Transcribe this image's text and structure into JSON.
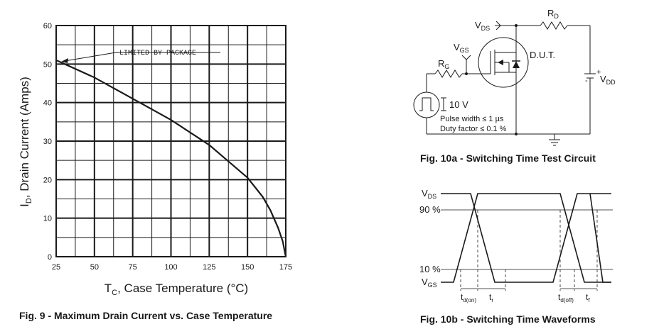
{
  "fig9": {
    "caption": "Fig. 9 - Maximum Drain Current vs. Case Temperature",
    "ylabel_main": "I",
    "ylabel_sub": "D",
    "ylabel_rest": ", Drain Current (Amps)",
    "xlabel_main": "T",
    "xlabel_sub": "C",
    "xlabel_rest": ", Case Temperature (°C)",
    "annotation": "LIMITED BY PACKAGE",
    "xticks": [
      "25",
      "50",
      "75",
      "100",
      "125",
      "150",
      "175"
    ],
    "yticks": [
      "0",
      "10",
      "20",
      "30",
      "40",
      "50",
      "60"
    ]
  },
  "chart_data": {
    "type": "line",
    "x": [
      25,
      50,
      75,
      100,
      125,
      150,
      160,
      165,
      170,
      173,
      175
    ],
    "series": [
      {
        "values": [
          51,
          46.5,
          41,
          35.5,
          29,
          20.5,
          15.5,
          12,
          7.5,
          4,
          0
        ]
      }
    ],
    "xlim": [
      25,
      175
    ],
    "ylim": [
      0,
      60
    ],
    "grid": true
  },
  "fig10a": {
    "caption": "Fig. 10a - Switching Time Test Circuit",
    "vds": "V",
    "vds_sub": "DS",
    "rd": "R",
    "rd_sub": "D",
    "vgs": "V",
    "vgs_sub": "GS",
    "rg": "R",
    "rg_sub": "G",
    "dut": "D.U.T.",
    "vdd_plus": "+",
    "vdd_minus": "-",
    "vdd": "V",
    "vdd_sub": "DD",
    "pulse_amp": "10 V",
    "pulse_width": "Pulse width ≤ 1 µs",
    "duty": "Duty factor ≤ 0.1 %"
  },
  "fig10b": {
    "caption": "Fig. 10b - Switching Time Waveforms",
    "vds": "V",
    "vds_sub": "DS",
    "pct90": "90 %",
    "pct10": "10 %",
    "vgs": "V",
    "vgs_sub": "GS",
    "tdon": "t",
    "tdon_sub": "d(on)",
    "tr": "t",
    "tr_sub": "r",
    "tdoff": "t",
    "tdoff_sub": "d(off)",
    "tf": "t",
    "tf_sub": "f"
  }
}
